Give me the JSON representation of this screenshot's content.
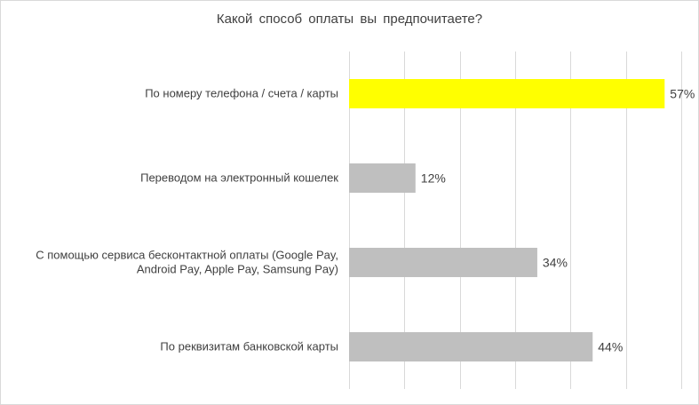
{
  "chart_data": {
    "type": "bar",
    "orientation": "horizontal",
    "title": "Какой способ оплаты вы предпочитаете?",
    "categories": [
      [
        "По номеру телефона / счета / карты"
      ],
      [
        "Переводом на электронный кошелек"
      ],
      [
        "С помощью сервиса бесконтактной оплаты (Google Pay,",
        "Android Pay, Apple Pay, Samsung Pay)"
      ],
      [
        "По реквизитам банковской карты"
      ]
    ],
    "values": [
      57,
      12,
      34,
      44
    ],
    "value_labels": [
      "57%",
      "12%",
      "34%",
      "44%"
    ],
    "unit": "%",
    "xlim": [
      0,
      60
    ],
    "grid": true,
    "legend": "none",
    "colors": {
      "highlight": "#FFFF00",
      "bar": "#BFBFBF",
      "grid": "#D9D9D9",
      "text": "#404040"
    },
    "highlight_index": 0
  }
}
